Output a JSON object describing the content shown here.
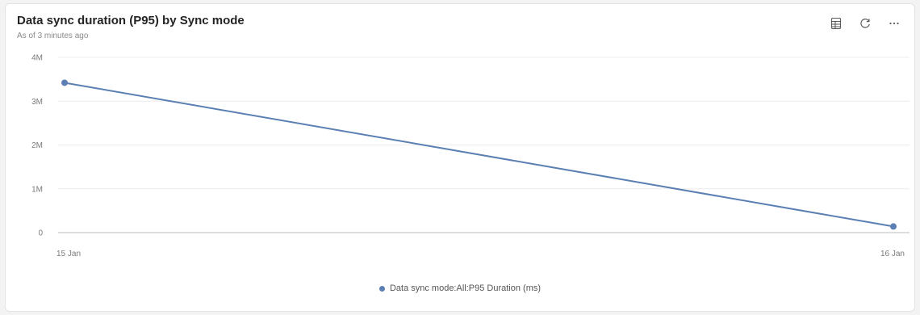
{
  "card": {
    "title": "Data sync duration (P95) by Sync mode",
    "subtitle": "As of 3 minutes ago"
  },
  "toolbar": {
    "icons": [
      "table-view-icon",
      "refresh-icon",
      "more-options-icon"
    ]
  },
  "colors": {
    "series": "#5b7fb3",
    "grid": "#ececec",
    "axis": "#bdbdbd"
  },
  "chart_data": {
    "type": "line",
    "x": [
      "15 Jan",
      "16 Jan"
    ],
    "series": [
      {
        "name": "Data sync mode:All:P95 Duration (ms)",
        "values": [
          3420000,
          140000
        ]
      }
    ],
    "ylim": [
      0,
      4000000
    ],
    "yticks": [
      "0",
      "1M",
      "2M",
      "3M",
      "4M"
    ],
    "ytick_values": [
      0,
      1000000,
      2000000,
      3000000,
      4000000
    ],
    "grid": true,
    "legend_position": "bottom-center"
  }
}
